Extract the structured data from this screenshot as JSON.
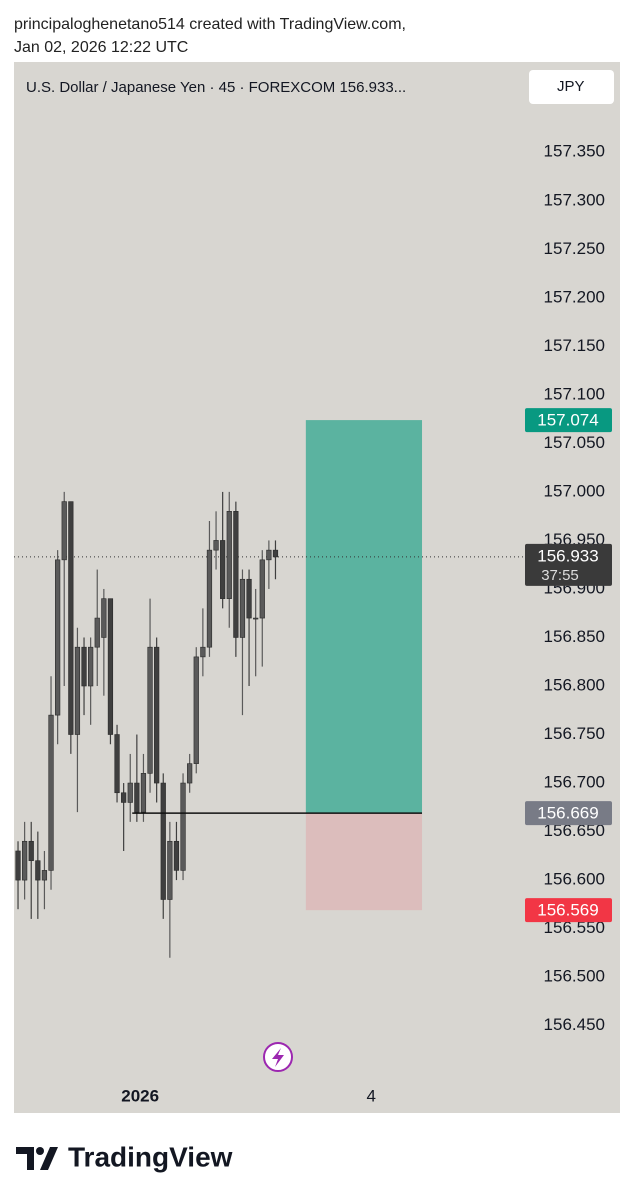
{
  "header": {
    "line1": "principaloghenetano514 created with TradingView.com,",
    "line2": "Jan 02, 2026 12:22 UTC"
  },
  "chart_data": {
    "type": "candlestick",
    "title": "U.S. Dollar / Japanese Yen · 45 · FOREXCOM  156.933...",
    "currency": "JPY",
    "colors": {
      "up": "#5a5a5a",
      "down": "#3f3f3f",
      "background": "#d8d6d1"
    },
    "open": [
      156.63,
      156.6,
      156.64,
      156.62,
      156.6,
      156.61,
      156.77,
      156.93,
      156.99,
      156.75,
      156.84,
      156.8,
      156.84,
      156.85,
      156.89,
      156.75,
      156.69,
      156.68,
      156.7,
      156.67,
      156.71,
      156.84,
      156.7,
      156.58,
      156.64,
      156.61,
      156.7,
      156.72,
      156.83,
      156.84,
      156.94,
      156.95,
      156.89,
      156.98,
      156.85,
      156.91,
      156.87,
      156.87,
      156.93,
      156.94
    ],
    "high": [
      156.64,
      156.66,
      156.66,
      156.65,
      156.63,
      156.81,
      156.94,
      157.0,
      156.99,
      156.86,
      156.85,
      156.85,
      156.92,
      156.9,
      156.89,
      156.76,
      156.7,
      156.73,
      156.75,
      156.73,
      156.89,
      156.85,
      156.71,
      156.66,
      156.66,
      156.71,
      156.73,
      156.84,
      156.88,
      156.97,
      156.98,
      157.0,
      157.0,
      156.99,
      156.92,
      156.92,
      156.9,
      156.94,
      156.95,
      156.95
    ],
    "low": [
      156.57,
      156.58,
      156.56,
      156.56,
      156.57,
      156.59,
      156.74,
      156.8,
      156.73,
      156.67,
      156.77,
      156.76,
      156.8,
      156.79,
      156.74,
      156.68,
      156.63,
      156.66,
      156.66,
      156.66,
      156.69,
      156.68,
      156.56,
      156.52,
      156.6,
      156.6,
      156.69,
      156.71,
      156.81,
      156.83,
      156.92,
      156.88,
      156.86,
      156.83,
      156.77,
      156.8,
      156.81,
      156.82,
      156.9,
      156.91
    ],
    "close": [
      156.6,
      156.64,
      156.62,
      156.6,
      156.61,
      156.77,
      156.93,
      156.99,
      156.75,
      156.84,
      156.8,
      156.84,
      156.87,
      156.89,
      156.75,
      156.69,
      156.68,
      156.7,
      156.67,
      156.71,
      156.84,
      156.7,
      156.58,
      156.64,
      156.61,
      156.7,
      156.72,
      156.83,
      156.84,
      156.94,
      156.95,
      156.89,
      156.98,
      156.85,
      156.91,
      156.87,
      156.87,
      156.93,
      156.94,
      156.933
    ],
    "xlim": [
      -0.61,
      76.8
    ],
    "xticks": [
      {
        "value": 18.5,
        "label": "2026"
      },
      {
        "value": 53.5,
        "label": "4"
      }
    ],
    "ylim": [
      156.36,
      157.443
    ],
    "yticks": [
      {
        "value": 157.35,
        "label": "157.350"
      },
      {
        "value": 157.3,
        "label": "157.300"
      },
      {
        "value": 157.25,
        "label": "157.250"
      },
      {
        "value": 157.2,
        "label": "157.200"
      },
      {
        "value": 157.15,
        "label": "157.150"
      },
      {
        "value": 157.1,
        "label": "157.100"
      },
      {
        "value": 157.05,
        "label": "157.050"
      },
      {
        "value": 157.0,
        "label": "157.000"
      },
      {
        "value": 156.95,
        "label": "156.950"
      },
      {
        "value": 156.9,
        "label": "156.900"
      },
      {
        "value": 156.85,
        "label": "156.850"
      },
      {
        "value": 156.8,
        "label": "156.800"
      },
      {
        "value": 156.75,
        "label": "156.750"
      },
      {
        "value": 156.7,
        "label": "156.700"
      },
      {
        "value": 156.65,
        "label": "156.650"
      },
      {
        "value": 156.6,
        "label": "156.600"
      },
      {
        "value": 156.55,
        "label": "156.550"
      },
      {
        "value": 156.5,
        "label": "156.500"
      },
      {
        "value": 156.45,
        "label": "156.450"
      }
    ],
    "position": {
      "x_start": 43.6,
      "x_end": 61.2,
      "target": 157.074,
      "entry": 156.669,
      "stop": 156.569,
      "entry_line_start": 17.3,
      "target_color": "#5bb3a0",
      "stop_color": "#dcbdbc"
    },
    "current_price": 156.933,
    "countdown": "37:55"
  },
  "footer": {
    "brand": "TradingView"
  }
}
